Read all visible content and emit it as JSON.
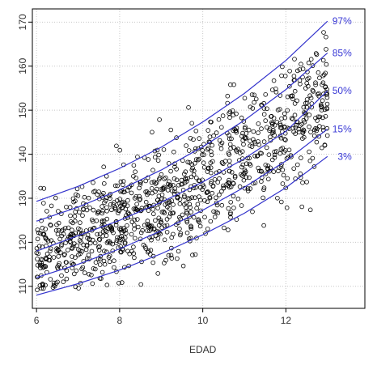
{
  "chart_data": {
    "type": "scatter",
    "title": "",
    "xlabel": "EDAD",
    "ylabel": "",
    "xlim": [
      5.9,
      13.9
    ],
    "ylim": [
      105,
      173
    ],
    "xticks": [
      6,
      8,
      10,
      12
    ],
    "yticks": [
      110,
      120,
      130,
      140,
      150,
      160,
      170
    ],
    "grid": true,
    "point_color": "#000000",
    "curve_color": "#3333cc",
    "label_color": "#3b3bd6",
    "series": [
      {
        "label": "97%",
        "x": [
          6.0,
          7.0,
          8.0,
          9.0,
          10.0,
          11.0,
          12.0,
          13.0
        ],
        "y": [
          129.3,
          132.7,
          136.8,
          141.6,
          147.3,
          153.8,
          161.3,
          170.2
        ]
      },
      {
        "label": "85%",
        "x": [
          6.0,
          7.0,
          8.0,
          9.0,
          10.0,
          11.0,
          12.0,
          13.0
        ],
        "y": [
          124.8,
          128.0,
          131.9,
          136.4,
          141.7,
          147.7,
          154.7,
          163.0
        ]
      },
      {
        "label": "50%",
        "x": [
          6.0,
          7.0,
          8.0,
          9.0,
          10.0,
          11.0,
          12.0,
          13.0
        ],
        "y": [
          118.0,
          121.5,
          125.0,
          129.1,
          133.7,
          139.0,
          145.2,
          154.4
        ]
      },
      {
        "label": "15%",
        "x": [
          6.0,
          7.0,
          8.0,
          9.0,
          10.0,
          11.0,
          12.0,
          13.0
        ],
        "y": [
          112.0,
          115.0,
          118.5,
          122.6,
          127.3,
          132.5,
          138.5,
          145.7
        ]
      },
      {
        "label": "3%",
        "x": [
          6.0,
          7.0,
          8.0,
          9.0,
          10.0,
          11.0,
          12.0,
          13.0
        ],
        "y": [
          108.0,
          110.6,
          113.7,
          117.4,
          121.7,
          126.6,
          132.4,
          139.5
        ]
      }
    ]
  }
}
